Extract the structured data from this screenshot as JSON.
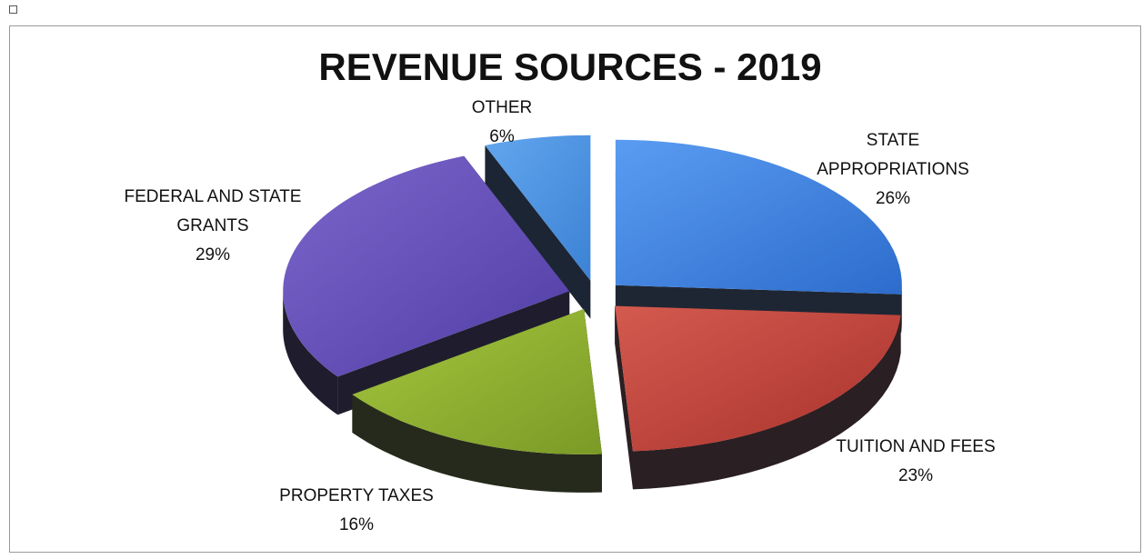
{
  "chart_data": {
    "type": "pie",
    "title": "REVENUE SOURCES - 2019",
    "style": "3d-exploded",
    "legend": "none",
    "slices": [
      {
        "label_lines": [
          "STATE",
          "APPROPRIATIONS"
        ],
        "value": 26,
        "value_label": "26%",
        "color": "#3f7fe0"
      },
      {
        "label_lines": [
          "TUITION AND FEES"
        ],
        "value": 23,
        "value_label": "23%",
        "color": "#c0413a"
      },
      {
        "label_lines": [
          "PROPERTY TAXES"
        ],
        "value": 16,
        "value_label": "16%",
        "color": "#8fb031"
      },
      {
        "label_lines": [
          "FEDERAL AND STATE",
          "GRANTS"
        ],
        "value": 29,
        "value_label": "29%",
        "color": "#6650b8"
      },
      {
        "label_lines": [
          "OTHER"
        ],
        "value": 6,
        "value_label": "6%",
        "color": "#4a90e0"
      }
    ]
  }
}
